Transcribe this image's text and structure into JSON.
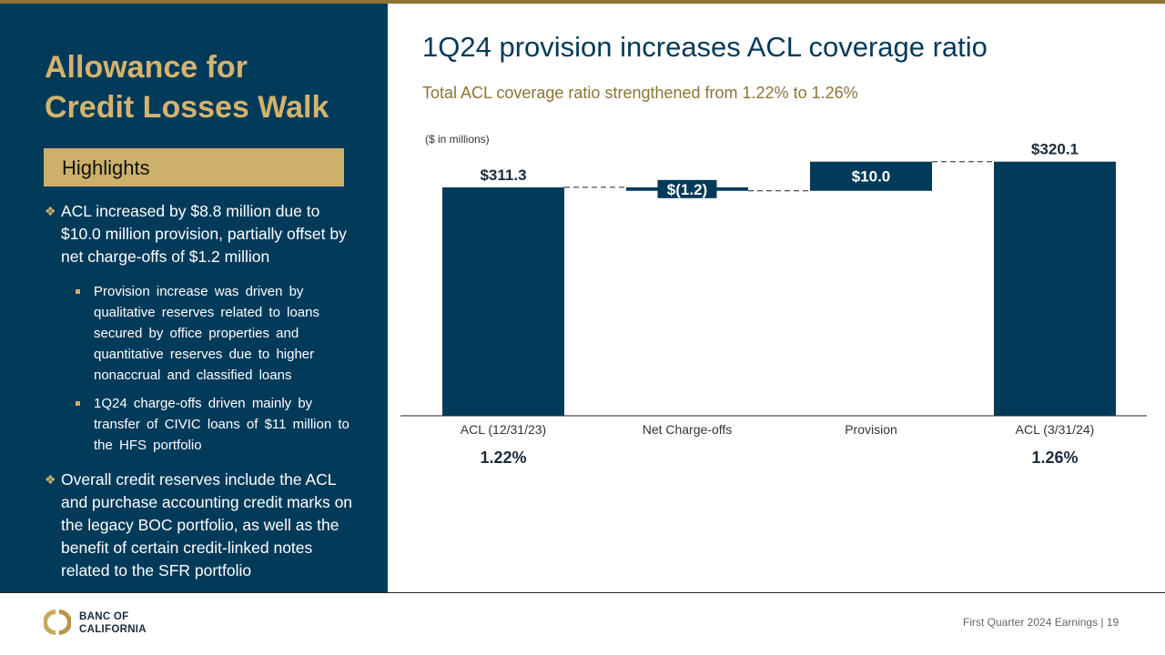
{
  "sidebar": {
    "title_line1": "Allowance for",
    "title_line2": "Credit Losses Walk",
    "highlights_label": "Highlights",
    "bullets": [
      {
        "text": "ACL increased by $8.8 million due to $10.0 million provision, partially offset by net charge-offs of $1.2 million",
        "sub": [
          "Provision increase was driven by qualitative reserves related to loans secured by office properties and quantitative reserves due to higher nonaccrual and classified loans",
          "1Q24 charge-offs driven mainly by transfer of CIVIC loans of $11 million to the HFS portfolio"
        ]
      },
      {
        "text": "Overall credit reserves include the ACL and purchase accounting credit marks on the legacy BOC portfolio, as well as the benefit of certain credit-linked notes related to the SFR portfolio"
      }
    ]
  },
  "header": {
    "title": "1Q24 provision increases ACL coverage ratio",
    "subtitle": "Total ACL coverage ratio strengthened  from 1.22% to 1.26%"
  },
  "chart_data": {
    "type": "bar",
    "subtype": "waterfall",
    "units_note": "($ in millions)",
    "categories": [
      "ACL (12/31/23)",
      "Net Charge-offs",
      "Provision",
      "ACL (3/31/24)"
    ],
    "values": [
      311.3,
      -1.2,
      10.0,
      320.1
    ],
    "kinds": [
      "total",
      "delta",
      "delta",
      "total"
    ],
    "data_labels": [
      "$311.3",
      "$(1.2)",
      "$10.0",
      "$320.1"
    ],
    "coverage_ratios": [
      "1.22%",
      "",
      "",
      "1.26%"
    ],
    "bar_color": "#023a5a",
    "grid": false,
    "legend": "none"
  },
  "footer": {
    "logo_line1": "BANC OF",
    "logo_line2": "CALIFORNIA",
    "text": "First Quarter 2024 Earnings |  19"
  }
}
